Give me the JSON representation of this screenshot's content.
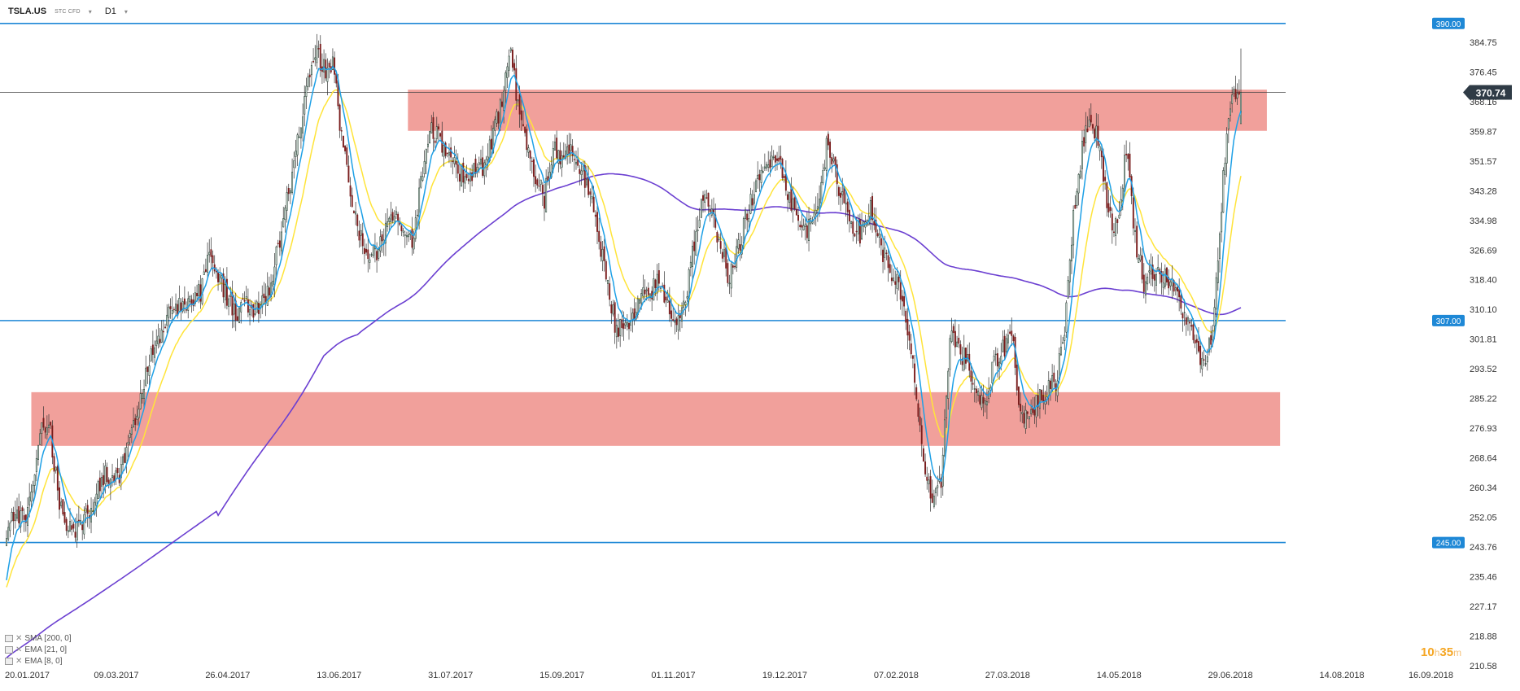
{
  "header": {
    "symbol": "TSLA.US",
    "instrument_type": "STC CFD",
    "timeframe": "D1"
  },
  "indicators": [
    {
      "label": "SMA [200, 0]",
      "color": "#6b3fd1"
    },
    {
      "label": "EMA [21, 0]",
      "color": "#ffe43a"
    },
    {
      "label": "EMA [8, 0]",
      "color": "#1ea0e6"
    }
  ],
  "timer": {
    "hours": "10",
    "h": "h",
    "minutes": "35",
    "m": "m"
  },
  "chart_data": {
    "type": "candlestick",
    "title": "",
    "ylim": [
      210.58,
      392.0
    ],
    "y_ticks": [
      "384.75",
      "376.45",
      "368.16",
      "359.87",
      "351.57",
      "343.28",
      "334.98",
      "326.69",
      "318.40",
      "310.10",
      "301.81",
      "293.52",
      "285.22",
      "276.93",
      "268.64",
      "260.34",
      "252.05",
      "243.76",
      "235.46",
      "227.17",
      "218.88",
      "210.58"
    ],
    "x_ticks": [
      "20.01.2017",
      "09.03.2017",
      "26.04.2017",
      "13.06.2017",
      "31.07.2017",
      "15.09.2017",
      "01.11.2017",
      "19.12.2017",
      "07.02.2018",
      "27.03.2018",
      "14.05.2018",
      "29.06.2018",
      "14.08.2018",
      "16.09.2018"
    ],
    "horizontal_levels": [
      {
        "value": 390.0,
        "label": "390.00"
      },
      {
        "value": 307.0,
        "label": "307.00"
      },
      {
        "value": 245.0,
        "label": "245.00"
      }
    ],
    "current_price": {
      "value": 370.74,
      "label": "370.74"
    },
    "zones": [
      {
        "from_index": 0.02,
        "to_index": 0.965,
        "low": 272.0,
        "high": 287.0
      },
      {
        "from_index": 0.305,
        "to_index": 0.955,
        "low": 360.0,
        "high": 371.5
      }
    ],
    "anchors": [
      [
        0,
        248
      ],
      [
        5,
        253
      ],
      [
        10,
        251
      ],
      [
        15,
        259
      ],
      [
        20,
        277
      ],
      [
        25,
        275
      ],
      [
        30,
        256
      ],
      [
        35,
        250
      ],
      [
        40,
        248
      ],
      [
        45,
        253
      ],
      [
        50,
        257
      ],
      [
        55,
        264
      ],
      [
        60,
        262
      ],
      [
        65,
        264
      ],
      [
        70,
        278
      ],
      [
        75,
        282
      ],
      [
        80,
        293
      ],
      [
        85,
        301
      ],
      [
        90,
        307
      ],
      [
        95,
        311
      ],
      [
        100,
        311
      ],
      [
        105,
        313
      ],
      [
        110,
        315
      ],
      [
        115,
        325
      ],
      [
        120,
        319
      ],
      [
        125,
        313
      ],
      [
        130,
        309
      ],
      [
        135,
        313
      ],
      [
        140,
        307
      ],
      [
        145,
        313
      ],
      [
        150,
        318
      ],
      [
        155,
        330
      ],
      [
        160,
        343
      ],
      [
        165,
        358
      ],
      [
        170,
        370
      ],
      [
        175,
        383
      ],
      [
        180,
        377
      ],
      [
        185,
        379
      ],
      [
        190,
        358
      ],
      [
        195,
        343
      ],
      [
        200,
        331
      ],
      [
        205,
        325
      ],
      [
        210,
        326
      ],
      [
        215,
        334
      ],
      [
        220,
        337
      ],
      [
        225,
        333
      ],
      [
        230,
        329
      ],
      [
        235,
        345
      ],
      [
        240,
        360
      ],
      [
        245,
        358
      ],
      [
        250,
        355
      ],
      [
        255,
        350
      ],
      [
        260,
        347
      ],
      [
        265,
        349
      ],
      [
        270,
        350
      ],
      [
        275,
        357
      ],
      [
        280,
        366
      ],
      [
        285,
        383
      ],
      [
        290,
        368
      ],
      [
        295,
        357
      ],
      [
        300,
        347
      ],
      [
        305,
        341
      ],
      [
        310,
        355
      ],
      [
        315,
        353
      ],
      [
        320,
        355
      ],
      [
        325,
        350
      ],
      [
        330,
        344
      ],
      [
        335,
        331
      ],
      [
        340,
        321
      ],
      [
        345,
        306
      ],
      [
        350,
        304
      ],
      [
        355,
        307
      ],
      [
        360,
        313
      ],
      [
        365,
        315
      ],
      [
        370,
        318
      ],
      [
        375,
        311
      ],
      [
        380,
        307
      ],
      [
        385,
        313
      ],
      [
        390,
        329
      ],
      [
        395,
        341
      ],
      [
        400,
        336
      ],
      [
        405,
        329
      ],
      [
        410,
        318
      ],
      [
        415,
        327
      ],
      [
        420,
        337
      ],
      [
        425,
        344
      ],
      [
        430,
        349
      ],
      [
        435,
        355
      ],
      [
        440,
        349
      ],
      [
        445,
        340
      ],
      [
        450,
        333
      ],
      [
        455,
        333
      ],
      [
        460,
        341
      ],
      [
        465,
        355
      ],
      [
        470,
        348
      ],
      [
        475,
        340
      ],
      [
        480,
        334
      ],
      [
        485,
        331
      ],
      [
        490,
        339
      ],
      [
        495,
        329
      ],
      [
        500,
        322
      ],
      [
        505,
        318
      ],
      [
        510,
        306
      ],
      [
        515,
        291
      ],
      [
        520,
        268
      ],
      [
        525,
        254
      ],
      [
        530,
        262
      ],
      [
        535,
        304
      ],
      [
        540,
        299
      ],
      [
        545,
        295
      ],
      [
        550,
        287
      ],
      [
        555,
        282
      ],
      [
        560,
        295
      ],
      [
        565,
        299
      ],
      [
        570,
        304
      ],
      [
        575,
        281
      ],
      [
        580,
        280
      ],
      [
        585,
        285
      ],
      [
        590,
        287
      ],
      [
        595,
        290
      ],
      [
        600,
        305
      ],
      [
        605,
        337
      ],
      [
        610,
        355
      ],
      [
        615,
        364
      ],
      [
        620,
        356
      ],
      [
        625,
        337
      ],
      [
        630,
        332
      ],
      [
        635,
        356
      ],
      [
        640,
        330
      ],
      [
        645,
        318
      ],
      [
        650,
        321
      ],
      [
        655,
        320
      ],
      [
        660,
        317
      ],
      [
        665,
        313
      ],
      [
        670,
        306
      ],
      [
        675,
        299
      ],
      [
        680,
        293
      ],
      [
        685,
        309
      ],
      [
        690,
        348
      ],
      [
        695,
        371
      ],
      [
        700,
        370
      ]
    ],
    "series": [
      {
        "name": "SMA [200, 0]",
        "type": "line",
        "color": "#6b3fd1",
        "period": 200
      },
      {
        "name": "EMA [21, 0]",
        "type": "line",
        "color": "#ffe43a",
        "period": 21
      },
      {
        "name": "EMA [8, 0]",
        "type": "line",
        "color": "#1ea0e6",
        "period": 8
      }
    ],
    "grid": false,
    "legend": "bottom-left"
  }
}
